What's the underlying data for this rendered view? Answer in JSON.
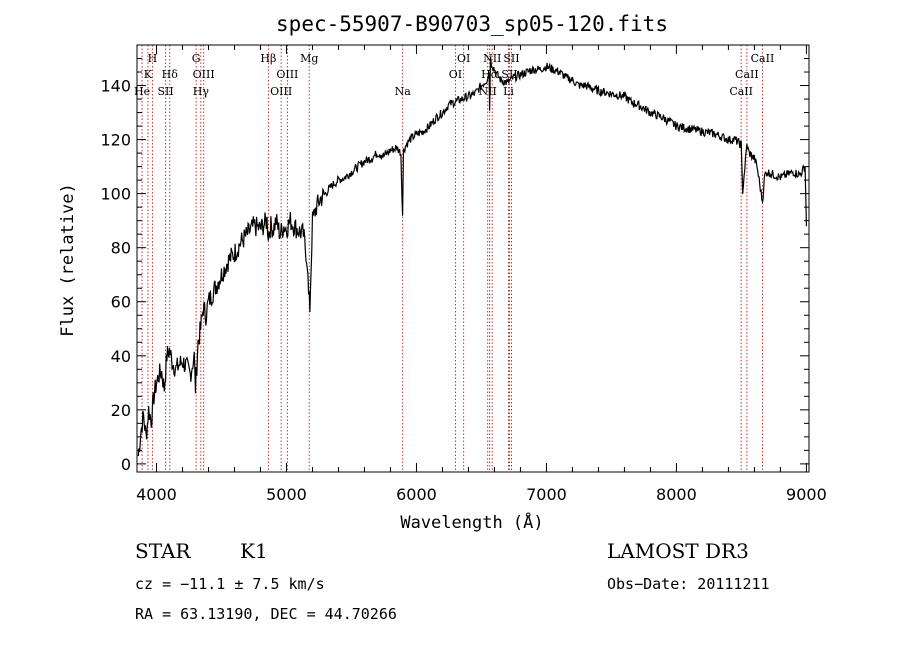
{
  "chart_data": {
    "type": "line",
    "title": "spec-55907-B90703_sp05-120.fits",
    "xlabel": "Wavelength (Å)",
    "ylabel": "Flux (relative)",
    "xlim": [
      3850,
      9020
    ],
    "ylim": [
      -3,
      155
    ],
    "xticks": [
      4000,
      5000,
      6000,
      7000,
      8000,
      9000
    ],
    "yticks": [
      0,
      20,
      40,
      60,
      80,
      100,
      120,
      140
    ],
    "spectrum": {
      "x": [
        3860,
        3880,
        3900,
        3920,
        3940,
        3960,
        3980,
        4000,
        4020,
        4040,
        4060,
        4080,
        4100,
        4120,
        4150,
        4180,
        4200,
        4230,
        4260,
        4290,
        4300,
        4320,
        4340,
        4360,
        4380,
        4400,
        4450,
        4500,
        4550,
        4600,
        4650,
        4700,
        4750,
        4800,
        4850,
        4860,
        4880,
        4900,
        4920,
        4950,
        4980,
        5000,
        5030,
        5060,
        5100,
        5130,
        5160,
        5170,
        5180,
        5200,
        5230,
        5260,
        5300,
        5350,
        5400,
        5450,
        5500,
        5550,
        5600,
        5650,
        5700,
        5750,
        5800,
        5850,
        5880,
        5893,
        5900,
        5920,
        5950,
        6000,
        6050,
        6100,
        6150,
        6200,
        6250,
        6300,
        6350,
        6400,
        6450,
        6500,
        6540,
        6560,
        6563,
        6570,
        6580,
        6600,
        6620,
        6650,
        6700,
        6750,
        6800,
        6850,
        6900,
        6950,
        7000,
        7050,
        7100,
        7150,
        7200,
        7250,
        7300,
        7400,
        7500,
        7600,
        7650,
        7700,
        7800,
        7900,
        8000,
        8100,
        8200,
        8300,
        8400,
        8450,
        8498,
        8510,
        8542,
        8560,
        8600,
        8620,
        8662,
        8680,
        8700,
        8750,
        8800,
        8850,
        8900,
        8950,
        8990,
        9000
      ],
      "y": [
        3,
        12,
        18,
        10,
        20,
        16,
        25,
        30,
        33,
        34,
        28,
        40,
        42,
        38,
        35,
        37,
        38,
        36,
        33,
        40,
        28,
        45,
        50,
        58,
        55,
        60,
        65,
        70,
        75,
        78,
        82,
        85,
        88,
        87,
        90,
        85,
        88,
        87,
        90,
        85,
        88,
        87,
        90,
        88,
        86,
        85,
        75,
        62,
        58,
        90,
        95,
        98,
        100,
        103,
        105,
        106,
        108,
        110,
        112,
        113,
        115,
        114,
        116,
        117,
        115,
        92,
        116,
        118,
        120,
        122,
        123,
        125,
        128,
        130,
        133,
        134,
        135,
        136,
        137,
        140,
        142,
        145,
        132,
        150,
        148,
        146,
        144,
        142,
        141,
        143,
        144,
        145,
        146,
        146,
        147,
        146,
        145,
        143,
        142,
        140,
        140,
        138,
        137,
        136,
        134,
        133,
        130,
        128,
        125,
        124,
        123,
        122,
        120,
        120,
        118,
        101,
        118,
        115,
        113,
        110,
        97,
        107,
        108,
        107,
        106,
        107,
        108,
        107,
        110,
        88
      ]
    },
    "lines": [
      {
        "name": "He",
        "wl": 3889,
        "row": 3
      },
      {
        "name": "K",
        "wl": 3934,
        "row": 2
      },
      {
        "name": "H",
        "wl": 3969,
        "row": 1
      },
      {
        "name": "SII",
        "wl": 4070,
        "row": 3
      },
      {
        "name": "Hδ",
        "wl": 4102,
        "row": 2
      },
      {
        "name": "G",
        "wl": 4305,
        "row": 1
      },
      {
        "name": "Hγ",
        "wl": 4341,
        "row": 3
      },
      {
        "name": "OIII",
        "wl": 4363,
        "row": 2
      },
      {
        "name": "Hβ",
        "wl": 4861,
        "row": 1
      },
      {
        "name": "OIII",
        "wl": 4959,
        "row": 3
      },
      {
        "name": "OIII",
        "wl": 5007,
        "row": 2
      },
      {
        "name": "Mg",
        "wl": 5175,
        "row": 1
      },
      {
        "name": "Na",
        "wl": 5894,
        "row": 3
      },
      {
        "name": "OI",
        "wl": 6300,
        "row": 2
      },
      {
        "name": "OI",
        "wl": 6363,
        "row": 1
      },
      {
        "name": "NII",
        "wl": 6548,
        "row": 3
      },
      {
        "name": "Hα",
        "wl": 6563,
        "row": 2
      },
      {
        "name": "NII",
        "wl": 6583,
        "row": 1
      },
      {
        "name": "SII",
        "wl": 6716,
        "row": 2
      },
      {
        "name": "SII",
        "wl": 6731,
        "row": 1
      },
      {
        "name": "Li",
        "wl": 6708,
        "row": 3
      },
      {
        "name": "CaII",
        "wl": 8498,
        "row": 3
      },
      {
        "name": "CaII",
        "wl": 8542,
        "row": 2
      },
      {
        "name": "CaII",
        "wl": 8662,
        "row": 1
      }
    ]
  },
  "info": {
    "class": "STAR",
    "subclass": "K1",
    "survey": "LAMOST DR3",
    "cz": "cz = −11.1 ± 7.5 km/s",
    "obs_date": "Obs−Date: 20111211",
    "radec": "RA =  63.13190, DEC =  44.70266"
  },
  "colors": {
    "line_marker": "#c0392b",
    "spectrum": "#000000"
  }
}
